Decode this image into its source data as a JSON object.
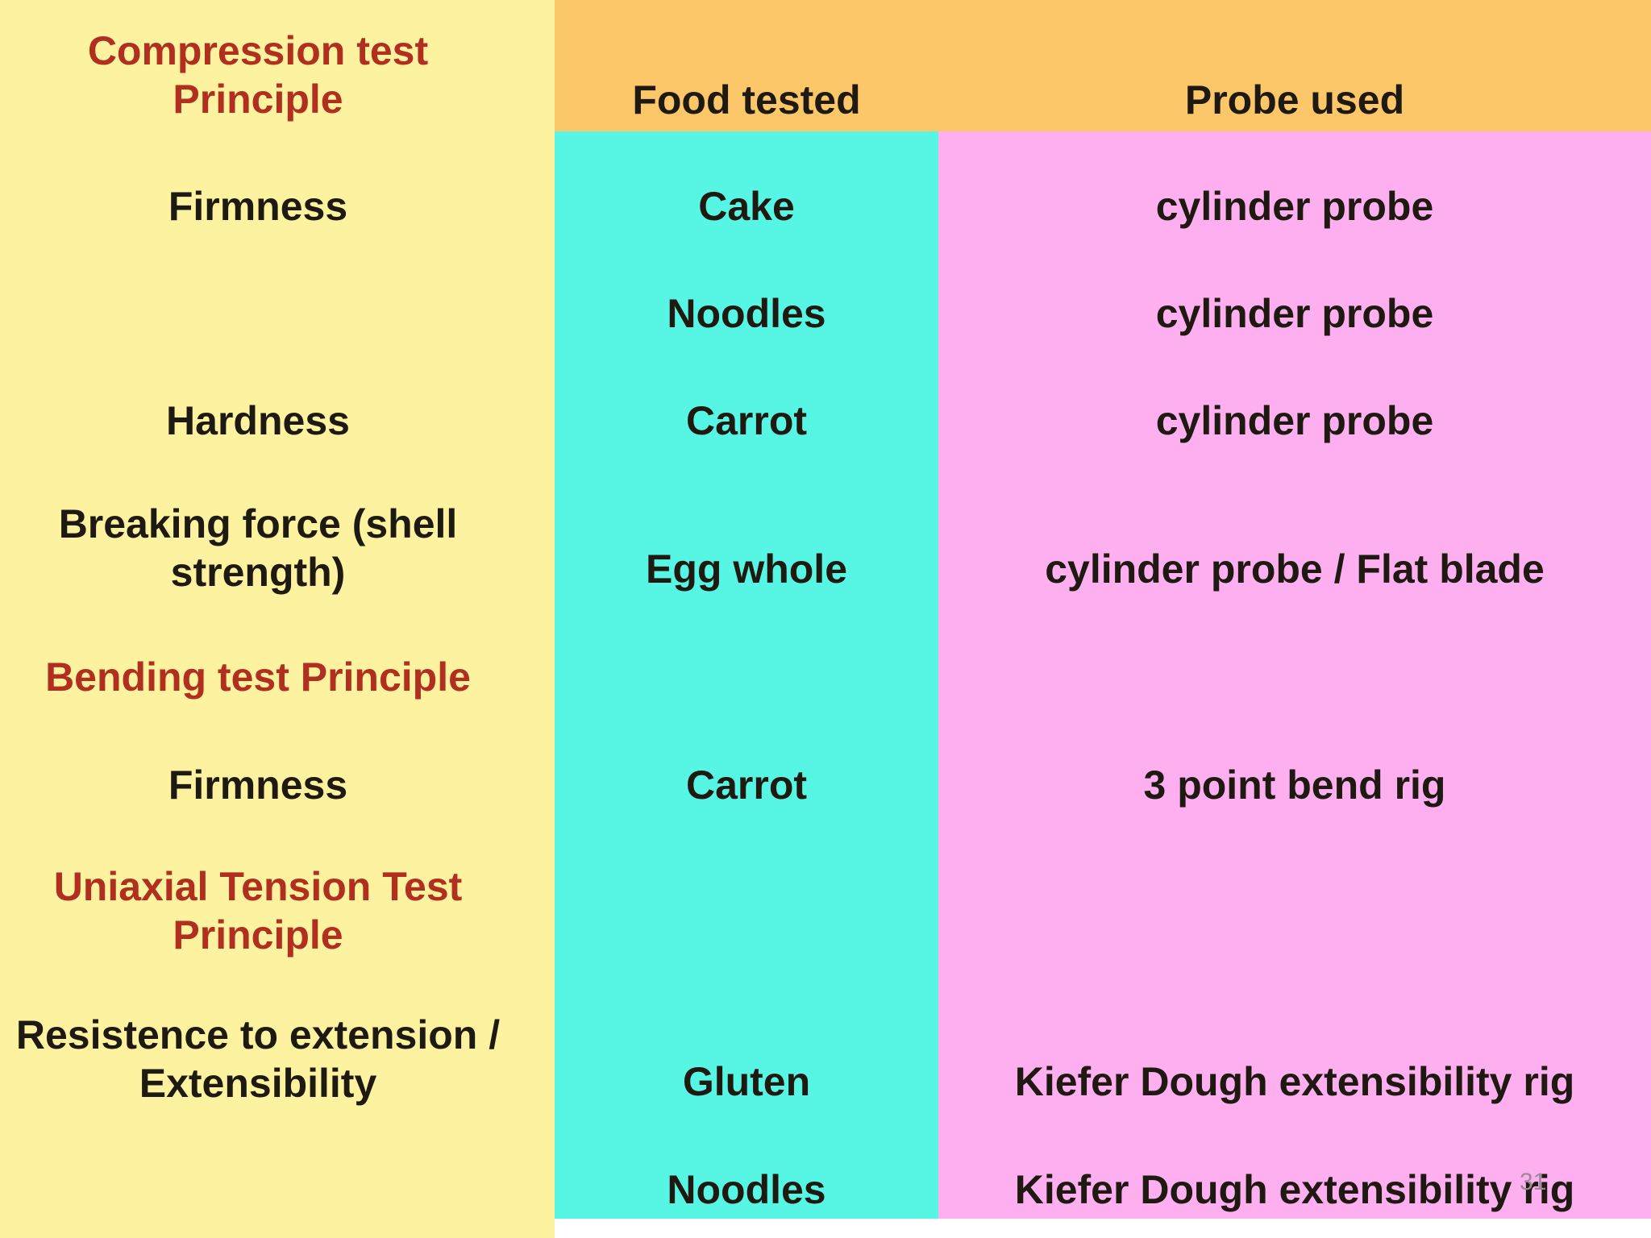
{
  "header": {
    "col_food": "Food tested",
    "col_probe": "Probe used"
  },
  "rows": [
    {
      "label": "Compression test Principle"
    },
    {
      "label": "Firmness",
      "food": "Cake",
      "probe": "cylinder probe"
    },
    {
      "label": "",
      "food": "Noodles",
      "probe": "cylinder probe"
    },
    {
      "label": "Hardness",
      "food": "Carrot",
      "probe": "cylinder probe"
    },
    {
      "label": "Breaking force (shell strength)",
      "food": "Egg whole",
      "probe": "cylinder probe / Flat blade"
    },
    {
      "label": "Bending test Principle"
    },
    {
      "label": "Firmness",
      "food": "Carrot",
      "probe": "3 point bend rig"
    },
    {
      "label": "Uniaxial Tension Test Principle"
    },
    {
      "label": "Resistence to extension / Extensibility",
      "food": "Gluten",
      "probe": "Kiefer Dough extensibility rig"
    },
    {
      "label": "",
      "food": "Noodles",
      "probe": "Kiefer Dough extensibility rig"
    }
  ],
  "page_number": "31",
  "colors": {
    "label_column": "#fcf29f",
    "header": "#fcc768",
    "food_column": "#56f5e4",
    "probe_column": "#fdaff0",
    "principle_text": "#b02f1e"
  }
}
